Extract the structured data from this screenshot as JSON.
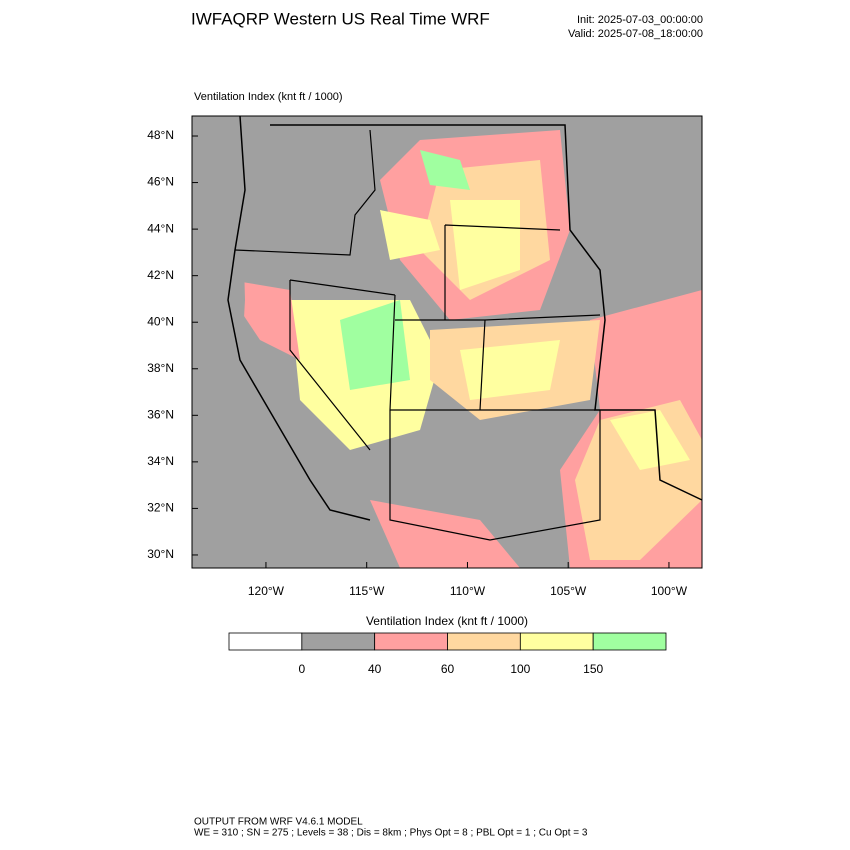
{
  "header": {
    "title": "IWFAQRP Western US Real Time WRF",
    "init": "Init: 2025-07-03_00:00:00",
    "valid": "Valid: 2025-07-08_18:00:00"
  },
  "map": {
    "field_label": "Ventilation Index   (knt ft / 1000)",
    "xlim": [
      -123.67,
      -98.36
    ],
    "ylim": [
      29.44,
      48.86
    ],
    "xticks": [
      {
        "value": -120,
        "label": "120°W"
      },
      {
        "value": -115,
        "label": "115°W"
      },
      {
        "value": -110,
        "label": "110°W"
      },
      {
        "value": -105,
        "label": "105°W"
      },
      {
        "value": -100,
        "label": "100°W"
      }
    ],
    "yticks": [
      {
        "value": 30,
        "label": "30°N"
      },
      {
        "value": 32,
        "label": "32°N"
      },
      {
        "value": 34,
        "label": "34°N"
      },
      {
        "value": 36,
        "label": "36°N"
      },
      {
        "value": 38,
        "label": "38°N"
      },
      {
        "value": 40,
        "label": "40°N"
      },
      {
        "value": 42,
        "label": "42°N"
      },
      {
        "value": 44,
        "label": "44°N"
      },
      {
        "value": 46,
        "label": "46°N"
      },
      {
        "value": 48,
        "label": "48°N"
      }
    ]
  },
  "colorbar": {
    "title": "Ventilation Index   (knt ft / 1000)",
    "levels": [
      0,
      40,
      60,
      100,
      150
    ],
    "colors": [
      "#ffffff",
      "#a0a0a0",
      "#ffa0a0",
      "#ffd8a0",
      "#ffffa0",
      "#a0ffa0"
    ]
  },
  "footer": {
    "line1": "OUTPUT FROM WRF V4.6.1 MODEL",
    "line2": "WE = 310 ; SN = 275 ; Levels = 38 ; Dis = 8km ; Phys Opt = 8 ; PBL Opt = 1 ; Cu Opt = 3"
  }
}
